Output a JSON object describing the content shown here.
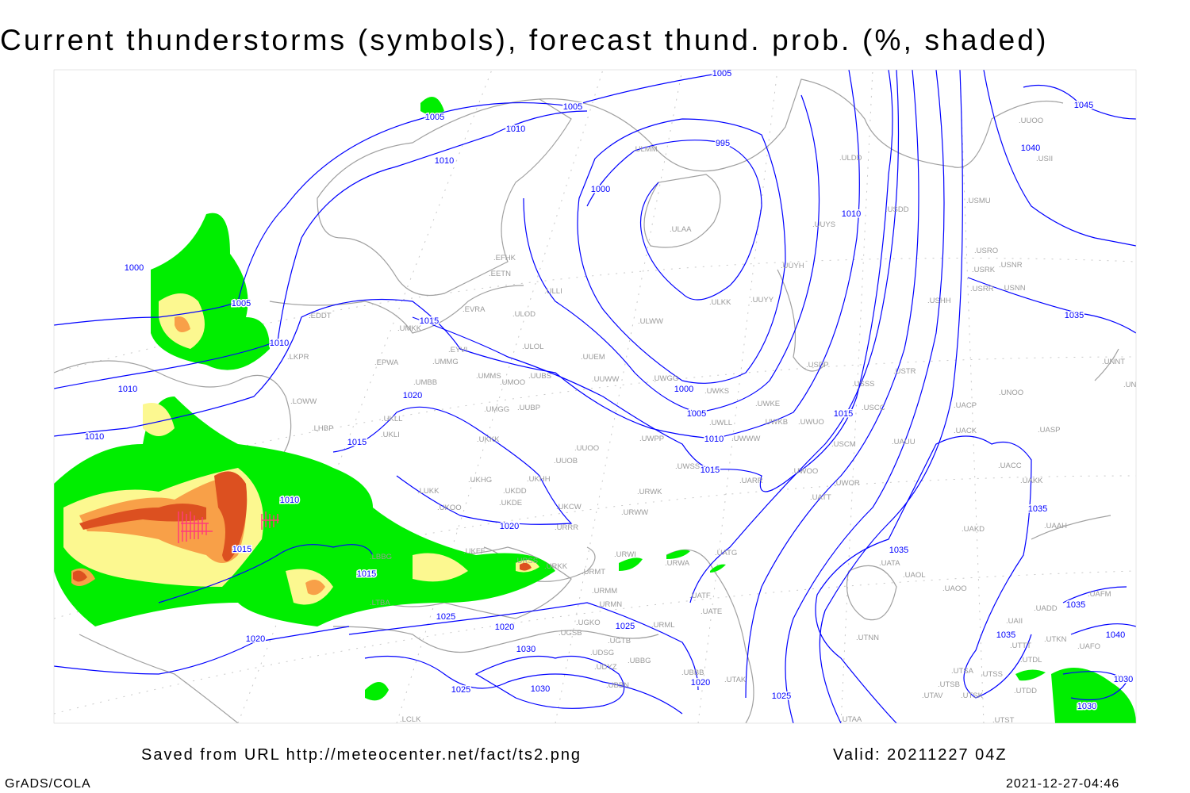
{
  "title": "Current thunderstorms (symbols), forecast thund. prob. (%, shaded)",
  "footer": {
    "source": "Saved from URL http://meteocenter.net/fact/ts2.png",
    "valid": "Valid: 20211227 04Z",
    "software": "GrADS/COLA",
    "timestamp": "2021-12-27-04:46"
  },
  "colors": {
    "isobar": "#0000ff",
    "coastline": "#a0a0a0",
    "prob_low": "#00ee00",
    "prob_mid": "#fcf890",
    "prob_high": "#f8a048",
    "prob_very_high": "#dc5020",
    "thunderstorm_symbol": "#ff3c78"
  },
  "map": {
    "projection": "polar stereographic",
    "isobar_labels": [
      "1005",
      "1005",
      "1005",
      "1010",
      "1010",
      "995",
      "1000",
      "1010",
      "1000",
      "1005",
      "1015",
      "1010",
      "1010",
      "1010",
      "1020",
      "1015",
      "1000",
      "1005",
      "1010",
      "1015",
      "1015",
      "1035",
      "1035",
      "1035",
      "1010",
      "1015",
      "1015",
      "1020",
      "1025",
      "1020",
      "1030",
      "1025",
      "1030",
      "1025",
      "1020",
      "1025",
      "1020",
      "1035",
      "1035",
      "1040",
      "1030",
      "1030",
      "1045",
      "1040"
    ],
    "stations": [
      "ULMM",
      "ULDD",
      "ULAA",
      "UUYS",
      "USDD",
      "USMU",
      "USRO",
      "USRK",
      "USNR",
      "USRR",
      "USNN",
      "UUYH",
      "EFHK",
      "EETN",
      "ULLI",
      "ULKK",
      "UUYY",
      "USHH",
      "EVRA",
      "ULOD",
      "ULWW",
      "UMKK",
      "EDDT",
      "EYVI",
      "ULOL",
      "UUEM",
      "EPWA",
      "UMMG",
      "LKPR",
      "UMMS",
      "UMOO",
      "UUBS",
      "UUWW",
      "UMBB",
      "UWGG",
      "UWKS",
      "USPP",
      "USTR",
      "USSS",
      "UNOO",
      "UNNT",
      "UNBB",
      "UWKE",
      "USCC",
      "UACP",
      "LOWW",
      "UMGG",
      "UUBP",
      "UWKB",
      "UWUO",
      "UWLL",
      "UKLL",
      "UKLI",
      "LHBP",
      "UACK",
      "UASP",
      "UWPP",
      "UWWW",
      "UKKK",
      "USCM",
      "UAUU",
      "UUOO",
      "UUOB",
      "UACC",
      "UWSS",
      "UWOO",
      "UAKK",
      "UARR",
      "UWOR",
      "UKHG",
      "UKDD",
      "UKHH",
      "UKDE",
      "UKCW",
      "UKOO",
      "LUKK",
      "URWK",
      "URWW",
      "URRR",
      "UATT",
      "UAAH",
      "UAKD",
      "UKFF",
      "URSS",
      "URKK",
      "URWI",
      "URMT",
      "URWA",
      "UATG",
      "URMM",
      "URMN",
      "UATF",
      "UATE",
      "URML",
      "UGKO",
      "UGSB",
      "UGTB",
      "UDSG",
      "UBBG",
      "UDYZ",
      "UBBB",
      "UBBN",
      "UTAK",
      "LCLK",
      "LTBA",
      "LBBG",
      "UATA",
      "UAOL",
      "UAOO",
      "UTNN",
      "UAFM",
      "UADD",
      "UAII",
      "UTTT",
      "UTKN",
      "UAFO",
      "UTDL",
      "UTSA",
      "UTSS",
      "UTSB",
      "UTAV",
      "UTSK",
      "UTDD",
      "UTAA",
      "UTST",
      "UUOO",
      "USII"
    ]
  }
}
